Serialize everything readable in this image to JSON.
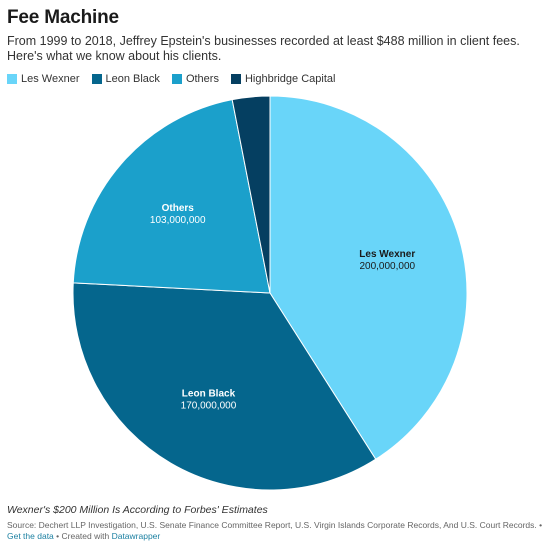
{
  "header": {
    "title": "Fee Machine",
    "subtitle": "From 1999 to 2018, Jeffrey Epstein's businesses recorded at least $488 million in client fees. Here's what we know about his clients."
  },
  "chart_data": {
    "type": "pie",
    "title": "Fee Machine",
    "categories": [
      "Les Wexner",
      "Leon Black",
      "Others",
      "Highbridge Capital"
    ],
    "values": [
      200000000,
      170000000,
      103000000,
      15000000
    ],
    "value_labels": [
      "200,000,000",
      "170,000,000",
      "103,000,000",
      ""
    ],
    "colors": [
      "#69d5f9",
      "#05668d",
      "#1ba0cb",
      "#053f61"
    ],
    "legend_position": "top-left",
    "labels_shown": [
      true,
      true,
      true,
      false
    ]
  },
  "notes": {
    "italic_note": "Wexner's $200 Million Is According to Forbes' Estimates"
  },
  "footer": {
    "source": "Source: Dechert LLP Investigation, U.S. Senate Finance Committee Report, U.S. Virgin Islands Corporate Records, And U.S. Court Records.",
    "get_data_prefix": " • ",
    "get_data": "Get the data",
    "created_with": " • Created with ",
    "tool": "Datawrapper"
  }
}
